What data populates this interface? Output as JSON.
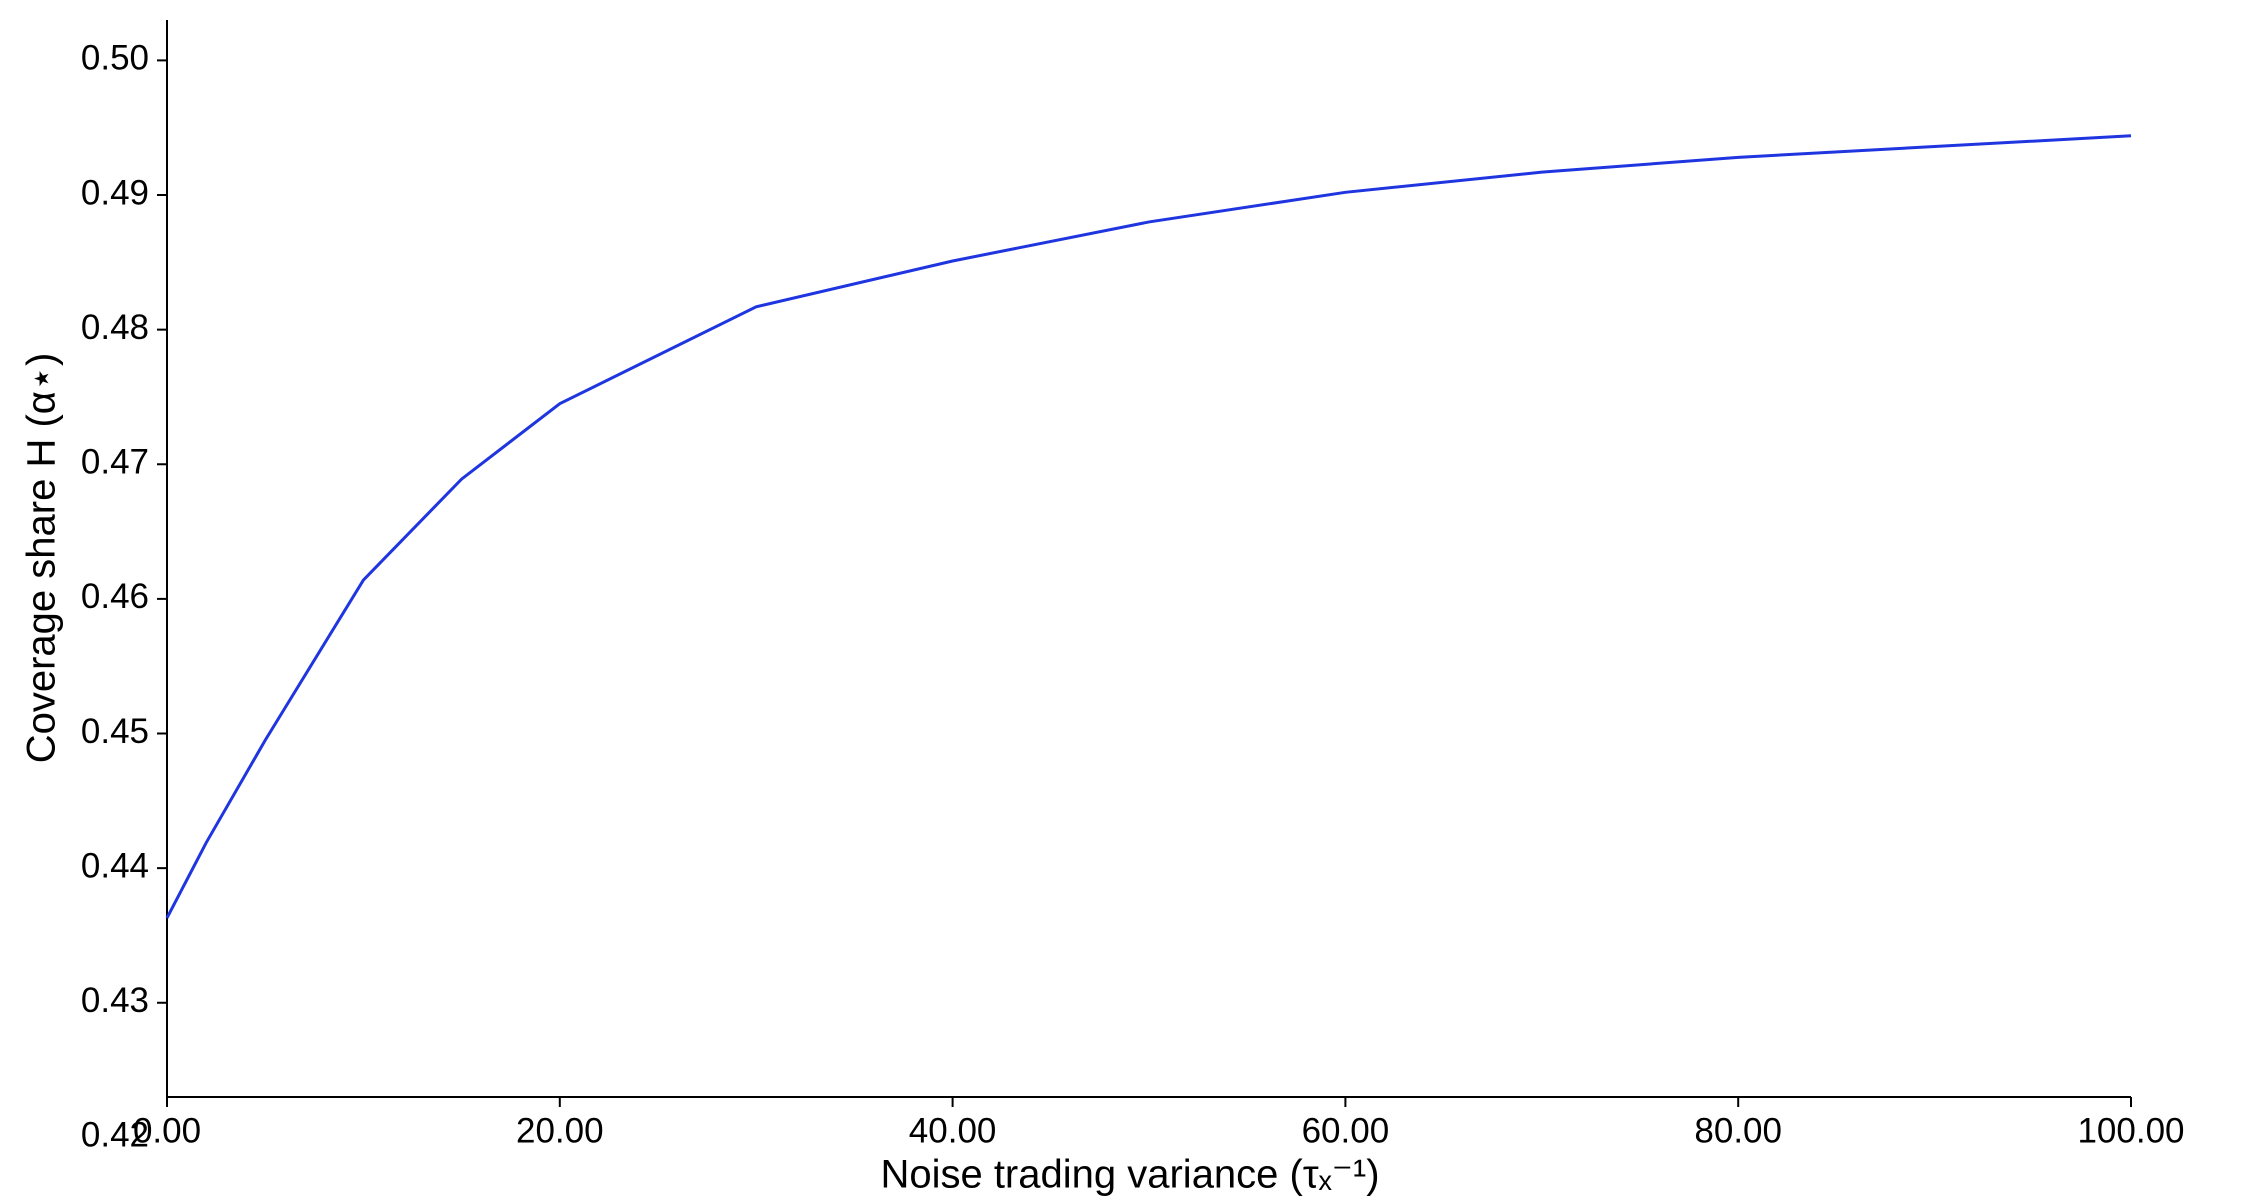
{
  "chart_data": {
    "type": "line",
    "xlabel": "Noise trading variance (τₓ⁻¹)",
    "ylabel": "Coverage share H (α⋆)",
    "x": [
      0,
      1,
      2,
      5,
      10,
      15,
      20,
      30,
      40,
      50,
      60,
      70,
      80,
      90,
      100
    ],
    "series": [
      {
        "name": "Coverage share",
        "color": "#1f35e0",
        "values": [
          0.4363,
          0.4391,
          0.4419,
          0.4495,
          0.4614,
          0.4689,
          0.4745,
          0.4817,
          0.4851,
          0.488,
          0.4902,
          0.4917,
          0.4928,
          0.4936,
          0.4944
        ]
      }
    ],
    "xlim": [
      0,
      100
    ],
    "xticks": [
      {
        "value": 0,
        "label": "0.00"
      },
      {
        "value": 20,
        "label": "20.00"
      },
      {
        "value": 40,
        "label": "40.00"
      },
      {
        "value": 60,
        "label": "60.00"
      },
      {
        "value": 80,
        "label": "80.00"
      },
      {
        "value": 100,
        "label": "100.00"
      }
    ],
    "ylim": [
      0.423,
      0.503
    ],
    "yticks": [
      0.42,
      0.43,
      0.44,
      0.45,
      0.46,
      0.47,
      0.48,
      0.49,
      {
        "value": 0.5,
        "label": "0.50"
      }
    ]
  }
}
